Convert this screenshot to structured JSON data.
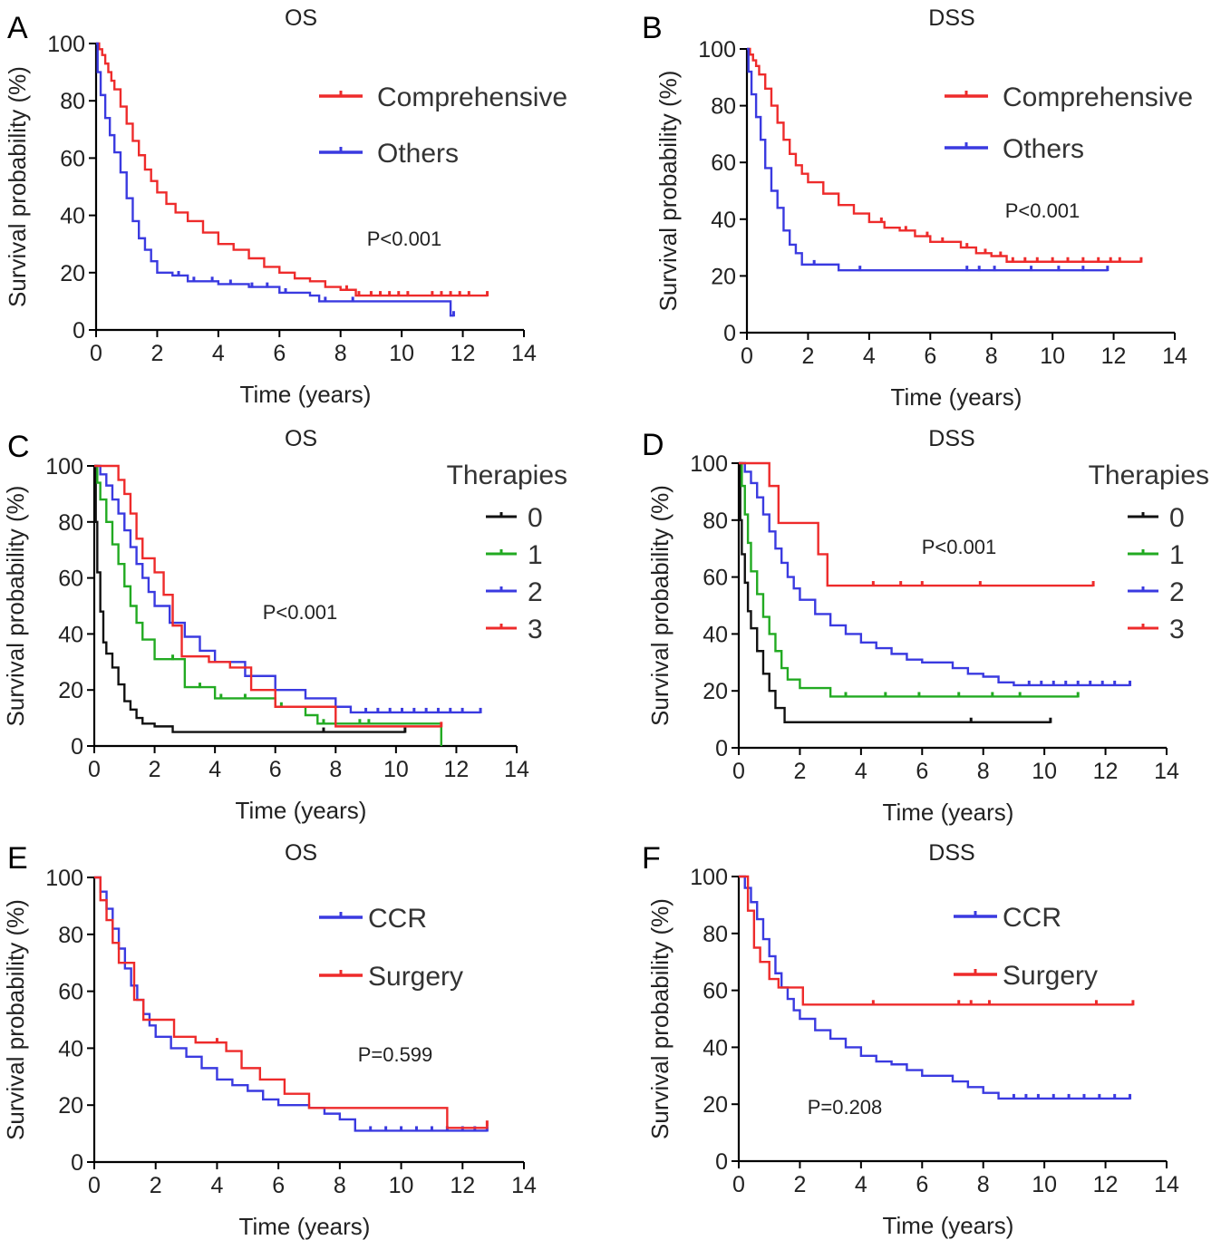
{
  "chart_data": [
    {
      "panel": "A",
      "title": "OS",
      "type": "line",
      "step": true,
      "xlabel": "Time (years)",
      "ylabel": "Survival probability (%)",
      "xlim": [
        0,
        14
      ],
      "ylim": [
        0,
        100
      ],
      "xticks": [
        0,
        2,
        4,
        6,
        8,
        10,
        12,
        14
      ],
      "yticks": [
        0,
        20,
        40,
        60,
        80,
        100
      ],
      "pvalue": "P<0.001",
      "legend": {
        "title": "",
        "position": "top-right",
        "legend_style": "wide"
      },
      "series": [
        {
          "name": "Comprehensive",
          "color": "#ee2b2b",
          "x": [
            0,
            0.1,
            0.2,
            0.3,
            0.4,
            0.5,
            0.6,
            0.8,
            1.0,
            1.2,
            1.4,
            1.6,
            1.8,
            2.0,
            2.3,
            2.6,
            3.0,
            3.5,
            4.0,
            4.5,
            5.0,
            5.5,
            6.0,
            6.5,
            7.0,
            7.5,
            8.0,
            8.5,
            9.0,
            12.8
          ],
          "y": [
            100,
            98,
            96,
            93,
            90,
            87,
            84,
            78,
            72,
            66,
            61,
            56,
            52,
            48,
            44,
            41,
            38,
            34,
            30,
            28,
            25,
            22,
            20,
            18,
            17,
            15,
            14,
            12,
            12,
            12
          ],
          "censor_x": [
            8.2,
            8.6,
            9.0,
            9.3,
            9.6,
            9.9,
            10.2,
            11.0,
            11.3,
            11.6,
            11.9,
            12.2,
            12.8
          ]
        },
        {
          "name": "Others",
          "color": "#3a3ae0",
          "x": [
            0,
            0.05,
            0.15,
            0.3,
            0.45,
            0.6,
            0.8,
            1.0,
            1.2,
            1.4,
            1.6,
            1.8,
            2.0,
            2.5,
            3.0,
            4.0,
            5.0,
            6.0,
            7.0,
            7.3,
            8.0,
            11.5,
            11.6,
            11.7
          ],
          "y": [
            100,
            90,
            82,
            74,
            68,
            62,
            55,
            46,
            38,
            32,
            28,
            24,
            20,
            19,
            17,
            16,
            15,
            13,
            12,
            10,
            10,
            10,
            5,
            5
          ],
          "censor_x": [
            2.7,
            3.2,
            3.8,
            4.4,
            5.1,
            5.6,
            6.2,
            7.5,
            8.4,
            11.7
          ]
        }
      ]
    },
    {
      "panel": "B",
      "title": "DSS",
      "type": "line",
      "step": true,
      "xlabel": "Time (years)",
      "ylabel": "Survival probability (%)",
      "xlim": [
        0,
        14
      ],
      "ylim": [
        0,
        100
      ],
      "xticks": [
        0,
        2,
        4,
        6,
        8,
        10,
        12,
        14
      ],
      "yticks": [
        0,
        20,
        40,
        60,
        80,
        100
      ],
      "pvalue": "P<0.001",
      "legend": {
        "title": "",
        "position": "top-right",
        "legend_style": "wide"
      },
      "series": [
        {
          "name": "Comprehensive",
          "color": "#ee2b2b",
          "x": [
            0,
            0.1,
            0.2,
            0.3,
            0.4,
            0.6,
            0.8,
            1.0,
            1.2,
            1.4,
            1.6,
            1.8,
            2.0,
            2.5,
            3.0,
            3.5,
            4.0,
            4.5,
            5.0,
            5.5,
            6.0,
            6.8,
            7.0,
            7.5,
            8.0,
            8.5,
            12.9
          ],
          "y": [
            100,
            98,
            96,
            94,
            91,
            86,
            80,
            74,
            68,
            63,
            59,
            56,
            53,
            49,
            45,
            42,
            39,
            37,
            36,
            34,
            32,
            32,
            30,
            28,
            27,
            25,
            25
          ],
          "censor_x": [
            4.4,
            5.2,
            5.9,
            6.4,
            7.2,
            7.8,
            8.3,
            8.7,
            9.1,
            9.5,
            10.0,
            10.5,
            11.0,
            11.5,
            11.9,
            12.2,
            12.9
          ]
        },
        {
          "name": "Others",
          "color": "#3a3ae0",
          "x": [
            0,
            0.05,
            0.15,
            0.3,
            0.45,
            0.6,
            0.8,
            1.0,
            1.2,
            1.4,
            1.6,
            1.8,
            3.0,
            11.8
          ],
          "y": [
            100,
            92,
            84,
            76,
            68,
            58,
            50,
            44,
            36,
            31,
            28,
            24,
            22,
            22
          ],
          "censor_x": [
            2.2,
            3.7,
            7.2,
            7.6,
            8.1,
            9.3,
            10.2,
            11.0,
            11.8
          ]
        }
      ]
    },
    {
      "panel": "C",
      "title": "OS",
      "type": "line",
      "step": true,
      "xlabel": "Time (years)",
      "ylabel": "Survival probability (%)",
      "xlim": [
        0,
        14
      ],
      "ylim": [
        0,
        100
      ],
      "xticks": [
        0,
        2,
        4,
        6,
        8,
        10,
        12,
        14
      ],
      "yticks": [
        0,
        20,
        40,
        60,
        80,
        100
      ],
      "pvalue": "P<0.001",
      "legend": {
        "title": "Therapies",
        "position": "top-right",
        "legend_style": "compact"
      },
      "series": [
        {
          "name": "0",
          "color": "#111111",
          "x": [
            0,
            0.05,
            0.1,
            0.2,
            0.3,
            0.4,
            0.6,
            0.8,
            1.0,
            1.2,
            1.4,
            1.6,
            2.0,
            2.6,
            10.3
          ],
          "y": [
            100,
            80,
            62,
            48,
            37,
            33,
            28,
            22,
            16,
            13,
            10,
            8,
            7,
            5,
            5
          ],
          "censor_x": [
            7.6,
            10.3
          ]
        },
        {
          "name": "1",
          "color": "#22aa22",
          "x": [
            0,
            0.1,
            0.2,
            0.4,
            0.6,
            0.8,
            1.0,
            1.2,
            1.4,
            1.6,
            2.0,
            3.0,
            4.0,
            6.0,
            7.0,
            7.4,
            8.0,
            11.4,
            11.5
          ],
          "y": [
            100,
            94,
            88,
            80,
            72,
            65,
            57,
            50,
            44,
            38,
            31,
            21,
            17,
            14,
            11,
            8,
            8,
            8,
            0
          ],
          "censor_x": [
            2.6,
            3.5,
            4.2,
            5.0,
            6.2,
            7.6,
            8.8,
            9.1
          ]
        },
        {
          "name": "2",
          "color": "#3a3ae0",
          "x": [
            0,
            0.2,
            0.4,
            0.6,
            0.8,
            1.0,
            1.2,
            1.4,
            1.6,
            1.8,
            2.0,
            2.5,
            3.0,
            3.5,
            4.0,
            5.0,
            6.0,
            7.0,
            8.0,
            8.5,
            12.8
          ],
          "y": [
            100,
            97,
            93,
            88,
            83,
            77,
            71,
            65,
            60,
            55,
            50,
            44,
            39,
            34,
            30,
            25,
            20,
            17,
            14,
            12,
            12
          ],
          "censor_x": [
            9.0,
            9.4,
            9.8,
            10.2,
            10.6,
            11.0,
            11.4,
            11.8,
            12.2,
            12.8
          ]
        },
        {
          "name": "3",
          "color": "#ee2b2b",
          "x": [
            0,
            0.8,
            1.0,
            1.2,
            1.4,
            1.6,
            2.0,
            2.3,
            2.6,
            2.9,
            3.8,
            4.5,
            5.2,
            6.0,
            8.0,
            11.5
          ],
          "y": [
            100,
            95,
            90,
            83,
            74,
            67,
            62,
            54,
            43,
            32,
            30,
            28,
            20,
            14,
            7,
            7
          ],
          "censor_x": [
            11.5
          ]
        }
      ]
    },
    {
      "panel": "D",
      "title": "DSS",
      "type": "line",
      "step": true,
      "xlabel": "Time (years)",
      "ylabel": "Survival probability (%)",
      "xlim": [
        0,
        14
      ],
      "ylim": [
        0,
        100
      ],
      "xticks": [
        0,
        2,
        4,
        6,
        8,
        10,
        12,
        14
      ],
      "yticks": [
        0,
        20,
        40,
        60,
        80,
        100
      ],
      "pvalue": "P<0.001",
      "legend": {
        "title": "Therapies",
        "position": "top-right",
        "legend_style": "compact"
      },
      "series": [
        {
          "name": "0",
          "color": "#111111",
          "x": [
            0,
            0.05,
            0.1,
            0.2,
            0.3,
            0.4,
            0.6,
            0.8,
            1.0,
            1.2,
            1.5,
            10.2
          ],
          "y": [
            100,
            80,
            68,
            58,
            48,
            42,
            34,
            26,
            20,
            14,
            9,
            9
          ],
          "censor_x": [
            7.6,
            10.2
          ]
        },
        {
          "name": "1",
          "color": "#22aa22",
          "x": [
            0,
            0.1,
            0.2,
            0.3,
            0.4,
            0.6,
            0.8,
            1.0,
            1.2,
            1.4,
            1.6,
            2.0,
            3.0,
            11.1
          ],
          "y": [
            100,
            92,
            82,
            72,
            62,
            54,
            46,
            40,
            34,
            28,
            24,
            21,
            18,
            18
          ],
          "censor_x": [
            3.5,
            4.8,
            5.9,
            7.2,
            8.3,
            9.2,
            11.1
          ]
        },
        {
          "name": "2",
          "color": "#3a3ae0",
          "x": [
            0,
            0.2,
            0.4,
            0.6,
            0.8,
            1.0,
            1.2,
            1.4,
            1.6,
            1.8,
            2.0,
            2.5,
            3.0,
            3.5,
            4.0,
            4.5,
            5.0,
            5.5,
            6.0,
            7.0,
            7.5,
            8.0,
            8.5,
            9.0,
            12.8
          ],
          "y": [
            100,
            97,
            93,
            88,
            82,
            76,
            70,
            65,
            60,
            56,
            52,
            47,
            43,
            40,
            37,
            35,
            33,
            31,
            30,
            28,
            26,
            25,
            23,
            22,
            22
          ],
          "censor_x": [
            9.5,
            9.9,
            10.3,
            10.7,
            11.1,
            11.5,
            11.9,
            12.3,
            12.8
          ]
        },
        {
          "name": "3",
          "color": "#ee2b2b",
          "x": [
            0,
            1.0,
            1.3,
            2.6,
            2.9,
            11.6
          ],
          "y": [
            100,
            92,
            79,
            68,
            57,
            57
          ],
          "censor_x": [
            4.4,
            5.3,
            6.0,
            7.9,
            11.6
          ]
        }
      ]
    },
    {
      "panel": "E",
      "title": "OS",
      "type": "line",
      "step": true,
      "xlabel": "Time (years)",
      "ylabel": "Survival probability (%)",
      "xlim": [
        0,
        14
      ],
      "ylim": [
        0,
        100
      ],
      "xticks": [
        0,
        2,
        4,
        6,
        8,
        10,
        12,
        14
      ],
      "yticks": [
        0,
        20,
        40,
        60,
        80,
        100
      ],
      "pvalue": "P=0.599",
      "legend": {
        "title": "",
        "position": "top-right",
        "legend_style": "wide"
      },
      "series": [
        {
          "name": "CCR",
          "color": "#3a3ae0",
          "x": [
            0,
            0.2,
            0.4,
            0.6,
            0.8,
            1.0,
            1.2,
            1.4,
            1.6,
            1.8,
            2.0,
            2.5,
            3.0,
            3.5,
            4.0,
            4.5,
            5.0,
            5.5,
            6.0,
            7.0,
            7.5,
            8.0,
            8.5,
            12.8
          ],
          "y": [
            100,
            95,
            89,
            82,
            75,
            68,
            62,
            57,
            52,
            48,
            44,
            40,
            37,
            33,
            29,
            27,
            25,
            22,
            20,
            19,
            17,
            15,
            11,
            11
          ],
          "censor_x": [
            9.0,
            9.5,
            10.0,
            10.5,
            11.0,
            11.5,
            12.0,
            12.4,
            12.8
          ]
        },
        {
          "name": "Surgery",
          "color": "#ee2b2b",
          "x": [
            0,
            0.2,
            0.4,
            0.6,
            0.8,
            1.3,
            1.6,
            2.6,
            3.3,
            4.3,
            4.8,
            5.4,
            6.2,
            7.0,
            7.3,
            11.5,
            12.8
          ],
          "y": [
            100,
            92,
            85,
            77,
            70,
            57,
            50,
            44,
            42,
            39,
            33,
            29,
            24,
            19,
            19,
            12,
            13
          ],
          "censor_x": [
            4.0,
            12.8
          ]
        }
      ]
    },
    {
      "panel": "F",
      "title": "DSS",
      "type": "line",
      "step": true,
      "xlabel": "Time (years)",
      "ylabel": "Survival probability (%)",
      "xlim": [
        0,
        14
      ],
      "ylim": [
        0,
        100
      ],
      "xticks": [
        0,
        2,
        4,
        6,
        8,
        10,
        12,
        14
      ],
      "yticks": [
        0,
        20,
        40,
        60,
        80,
        100
      ],
      "pvalue": "P=0.208",
      "legend": {
        "title": "",
        "position": "top-right",
        "legend_style": "wide"
      },
      "series": [
        {
          "name": "CCR",
          "color": "#3a3ae0",
          "x": [
            0,
            0.2,
            0.4,
            0.6,
            0.8,
            1.0,
            1.2,
            1.4,
            1.6,
            1.8,
            2.0,
            2.5,
            3.0,
            3.5,
            4.0,
            4.5,
            5.0,
            5.5,
            6.0,
            7.0,
            7.5,
            8.0,
            8.5,
            12.8
          ],
          "y": [
            100,
            96,
            91,
            85,
            78,
            72,
            66,
            61,
            57,
            53,
            50,
            46,
            43,
            40,
            37,
            35,
            34,
            32,
            30,
            28,
            26,
            24,
            22,
            22
          ],
          "censor_x": [
            9.0,
            9.4,
            9.8,
            10.3,
            10.8,
            11.3,
            11.8,
            12.3,
            12.8
          ]
        },
        {
          "name": "Surgery",
          "color": "#ee2b2b",
          "x": [
            0,
            0.3,
            0.5,
            0.7,
            1.0,
            1.3,
            2.1,
            12.9
          ],
          "y": [
            100,
            88,
            75,
            70,
            64,
            61,
            55,
            55
          ],
          "censor_x": [
            4.4,
            7.2,
            7.6,
            8.2,
            11.7,
            12.9
          ]
        }
      ]
    }
  ]
}
